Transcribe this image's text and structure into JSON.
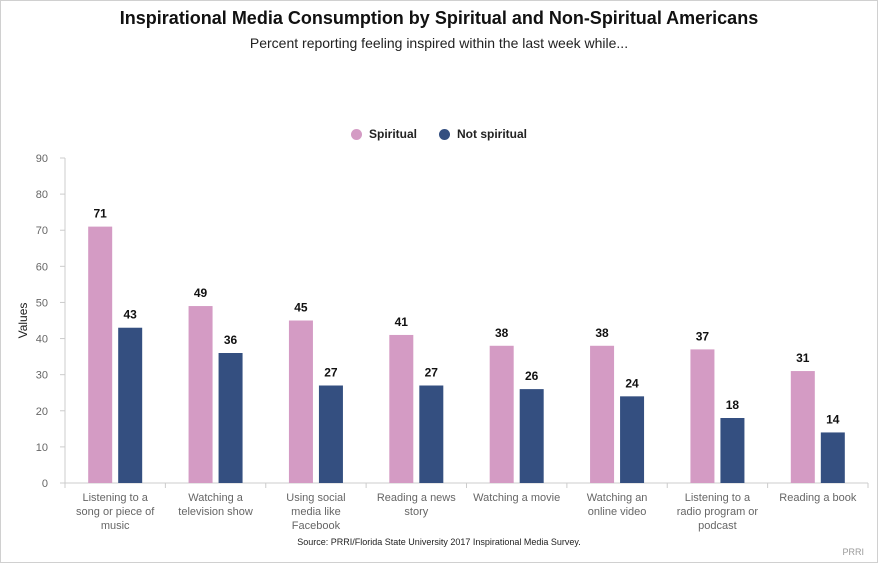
{
  "chart_data": {
    "type": "bar",
    "title": "Inspirational Media Consumption by Spiritual and Non-Spiritual Americans",
    "subtitle": "Percent reporting feeling inspired within the last week while...",
    "ylabel": "Values",
    "xlabel": "",
    "ylim": [
      0,
      90
    ],
    "yticks": [
      0,
      10,
      20,
      30,
      40,
      50,
      60,
      70,
      80,
      90
    ],
    "grid": false,
    "legend_position": "top-center",
    "categories": [
      [
        "Listening to a",
        "song or piece of",
        "music"
      ],
      [
        "Watching a",
        "television show"
      ],
      [
        "Using social",
        "media like",
        "Facebook"
      ],
      [
        "Reading a news",
        "story"
      ],
      [
        "Watching a movie"
      ],
      [
        "Watching an",
        "online video"
      ],
      [
        "Listening to a",
        "radio program or",
        "podcast"
      ],
      [
        "Reading a book"
      ]
    ],
    "series": [
      {
        "name": "Spiritual",
        "color": "#d49bc4",
        "values": [
          71,
          49,
          45,
          41,
          38,
          38,
          37,
          31
        ]
      },
      {
        "name": "Not spiritual",
        "color": "#344f80",
        "values": [
          43,
          36,
          27,
          27,
          26,
          24,
          18,
          14
        ]
      }
    ],
    "source": "Source: PRRI/Florida State University 2017 Inspirational Media Survey.",
    "credit": "PRRI"
  }
}
